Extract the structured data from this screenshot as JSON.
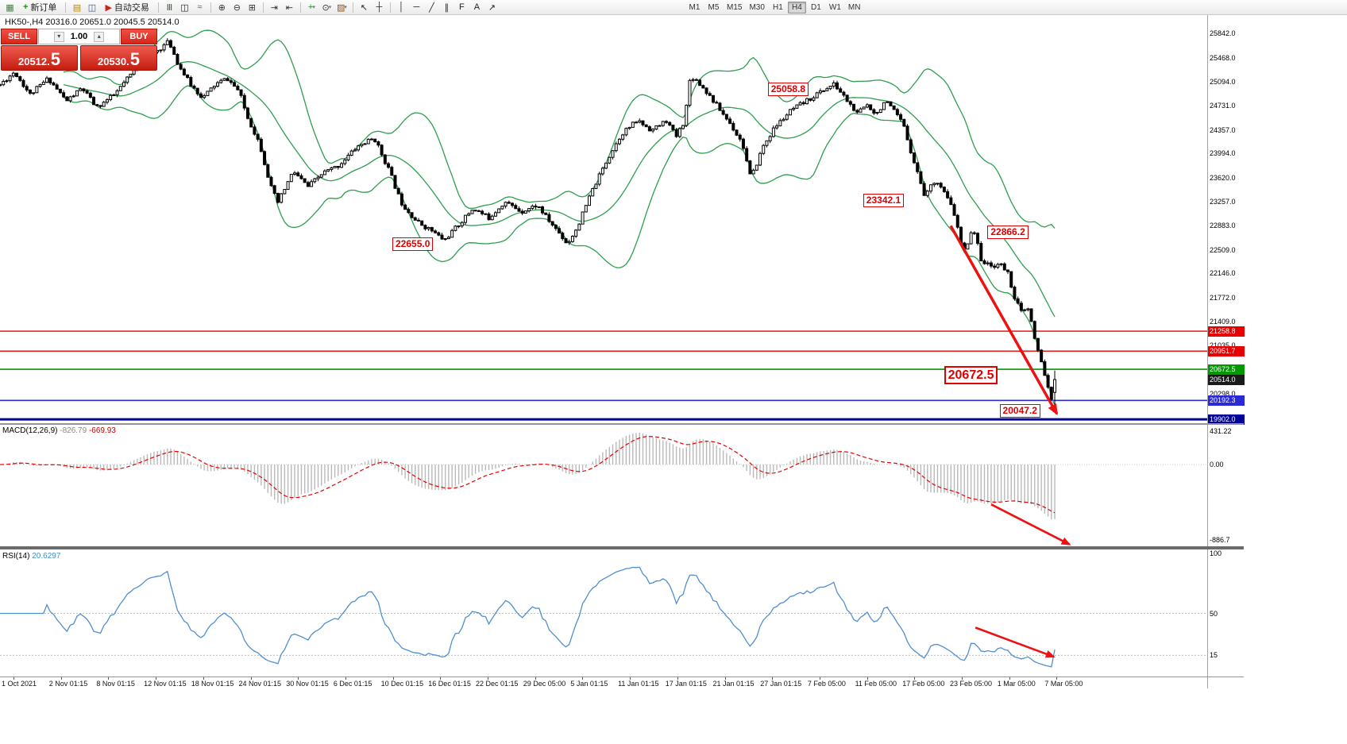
{
  "toolbar": {
    "items": [
      {
        "type": "icon",
        "name": "new-chart-icon",
        "glyph": "▦",
        "color": "#4a7c4a"
      },
      {
        "type": "button",
        "name": "new-order-button",
        "glyph": "+",
        "glyph_color": "#1a8c1a",
        "label": "新订单"
      },
      {
        "type": "sep"
      },
      {
        "type": "icon",
        "name": "profiles-icon",
        "glyph": "▤",
        "color": "#b8860b"
      },
      {
        "type": "icon",
        "name": "charts-window-icon",
        "glyph": "◫",
        "color": "#445577"
      },
      {
        "type": "button",
        "name": "autotrading-button",
        "glyph": "▶",
        "glyph_color": "#cc2222",
        "label": "自动交易"
      },
      {
        "type": "sep"
      },
      {
        "type": "icon",
        "name": "bar-chart-icon",
        "glyph": "Ⅲ",
        "color": "#336633"
      },
      {
        "type": "icon",
        "name": "candlestick-chart-icon",
        "glyph": "◫",
        "color": "#222222"
      },
      {
        "type": "icon",
        "name": "line-chart-icon",
        "glyph": "≈",
        "color": "#336699"
      },
      {
        "type": "sep"
      },
      {
        "type": "icon",
        "name": "zoom-in-icon",
        "glyph": "⊕",
        "color": "#333333"
      },
      {
        "type": "icon",
        "name": "zoom-out-icon",
        "glyph": "⊖",
        "color": "#333333"
      },
      {
        "type": "icon",
        "name": "tile-windows-icon",
        "glyph": "⊞",
        "color": "#333333"
      },
      {
        "type": "sep"
      },
      {
        "type": "icon",
        "name": "auto-scroll-icon",
        "glyph": "⇥",
        "color": "#333333"
      },
      {
        "type": "icon",
        "name": "chart-shift-icon",
        "glyph": "⇤",
        "color": "#333333"
      },
      {
        "type": "sep"
      },
      {
        "type": "icon-dd",
        "name": "indicators-icon",
        "glyph": "+",
        "color": "#1a8c1a"
      },
      {
        "type": "icon-dd",
        "name": "periods-icon",
        "glyph": "⊙",
        "color": "#333333"
      },
      {
        "type": "icon-dd",
        "name": "templates-icon",
        "glyph": "▨",
        "color": "#885522"
      },
      {
        "type": "sep"
      },
      {
        "type": "icon",
        "name": "cursor-icon",
        "glyph": "↖",
        "color": "#222222"
      },
      {
        "type": "icon",
        "name": "crosshair-icon",
        "glyph": "┼",
        "color": "#222222"
      },
      {
        "type": "sep"
      },
      {
        "type": "icon",
        "name": "vertical-line-icon",
        "glyph": "│",
        "color": "#222222"
      },
      {
        "type": "icon",
        "name": "horizontal-line-icon",
        "glyph": "─",
        "color": "#222222"
      },
      {
        "type": "icon",
        "name": "trendline-icon",
        "glyph": "╱",
        "color": "#222222"
      },
      {
        "type": "icon",
        "name": "channel-icon",
        "glyph": "∥",
        "color": "#222222"
      },
      {
        "type": "icon",
        "name": "fibonacci-icon",
        "glyph": "F",
        "color": "#222222"
      },
      {
        "type": "icon",
        "name": "text-label-icon",
        "glyph": "A",
        "color": "#222222"
      },
      {
        "type": "icon",
        "name": "arrows-tool-icon",
        "glyph": "↗",
        "color": "#222222"
      }
    ],
    "timeframes": [
      "M1",
      "M5",
      "M15",
      "M30",
      "H1",
      "H4",
      "D1",
      "W1",
      "MN"
    ],
    "active_timeframe": "H4"
  },
  "chart_header": {
    "title": "HK50-,H4",
    "ohlc": "20316.0 20651.0 20045.5 20514.0"
  },
  "trade_panel": {
    "sell_label": "SELL",
    "buy_label": "BUY",
    "volume": "1.00",
    "spinner_down": "▾",
    "spinner_up": "▴",
    "sell_price_main": "20512.",
    "sell_price_big": "5",
    "buy_price_main": "20530.",
    "buy_price_big": "5"
  },
  "chart_data": {
    "type": "candlestick",
    "symbol": "HK50-",
    "period": "H4",
    "ohlc_current": {
      "open": 20316.0,
      "high": 20651.0,
      "low": 20045.5,
      "close": 20514.0
    },
    "bid": 20512.5,
    "ask": 20530.5,
    "arrow_color": "#ee1111",
    "viewport": {
      "price_max": 26123,
      "price_min": 19842,
      "data_end_frac": 0.8737,
      "candle_count": 316,
      "seed": 11
    },
    "y_axis_labels": [
      "25842.0",
      "25468.0",
      "25094.0",
      "24731.0",
      "24357.0",
      "23994.0",
      "23620.0",
      "23257.0",
      "22883.0",
      "22509.0",
      "22146.0",
      "21772.0",
      "21409.0",
      "21035.0",
      "20298.0"
    ],
    "x_axis_labels": [
      "1 Oct 2021",
      "2 Nov 01:15",
      "8 Nov 01:15",
      "12 Nov 01:15",
      "18 Nov 01:15",
      "24 Nov 01:15",
      "30 Nov 01:15",
      "6 Dec 01:15",
      "10 Dec 01:15",
      "16 Dec 01:15",
      "22 Dec 01:15",
      "29 Dec 05:00",
      "5 Jan 01:15",
      "11 Jan 01:15",
      "17 Jan 01:15",
      "21 Jan 01:15",
      "27 Jan 01:15",
      "7 Feb 05:00",
      "11 Feb 05:00",
      "17 Feb 05:00",
      "23 Feb 05:00",
      "1 Mar 05:00",
      "7 Mar 05:00"
    ],
    "hlines": [
      {
        "price": 21258.8,
        "label": "21258.8",
        "color": "#e60000",
        "width": 1.3
      },
      {
        "price": 20951.7,
        "label": "20951.7",
        "color": "#e60000",
        "width": 1.3
      },
      {
        "price": 20672.5,
        "label": "20672.5",
        "color": "#009900",
        "width": 1.6
      },
      {
        "price": 20192.3,
        "label": "20192.3",
        "color": "#2b2bd6",
        "width": 1.6
      },
      {
        "price": 19902.0,
        "label": "19902.0",
        "color": "#000099",
        "width": 3
      }
    ],
    "current_price_box": {
      "label": "20514.0",
      "price": 20514.0,
      "color": "#1a1a1a"
    },
    "callouts": [
      {
        "text": "25058.8",
        "xf": 0.636,
        "yf": 0.165,
        "size": "normal"
      },
      {
        "text": "23342.1",
        "xf": 0.715,
        "yf": 0.437,
        "size": "normal"
      },
      {
        "text": "22866.2",
        "xf": 0.818,
        "yf": 0.515,
        "size": "normal"
      },
      {
        "text": "22655.0",
        "xf": 0.325,
        "yf": 0.545,
        "size": "normal"
      },
      {
        "text": "20672.5",
        "xf": 0.782,
        "yf": 0.86,
        "size": "large"
      },
      {
        "text": "20047.2",
        "xf": 0.828,
        "yf": 0.953,
        "size": "normal"
      }
    ],
    "swings": [
      [
        0.0,
        25050
      ],
      [
        0.012,
        25250
      ],
      [
        0.025,
        24900
      ],
      [
        0.04,
        25150
      ],
      [
        0.055,
        24800
      ],
      [
        0.068,
        25000
      ],
      [
        0.08,
        24700
      ],
      [
        0.095,
        24900
      ],
      [
        0.108,
        25200
      ],
      [
        0.12,
        25450
      ],
      [
        0.132,
        25600
      ],
      [
        0.14,
        25720
      ],
      [
        0.148,
        25350
      ],
      [
        0.158,
        25050
      ],
      [
        0.168,
        24850
      ],
      [
        0.178,
        25050
      ],
      [
        0.188,
        25150
      ],
      [
        0.198,
        24950
      ],
      [
        0.205,
        24550
      ],
      [
        0.215,
        24150
      ],
      [
        0.224,
        23500
      ],
      [
        0.23,
        23230
      ],
      [
        0.243,
        23720
      ],
      [
        0.255,
        23480
      ],
      [
        0.268,
        23700
      ],
      [
        0.28,
        23800
      ],
      [
        0.296,
        24100
      ],
      [
        0.31,
        24230
      ],
      [
        0.322,
        23750
      ],
      [
        0.332,
        23250
      ],
      [
        0.345,
        22950
      ],
      [
        0.358,
        22800
      ],
      [
        0.368,
        22655
      ],
      [
        0.38,
        22900
      ],
      [
        0.392,
        23150
      ],
      [
        0.405,
        23000
      ],
      [
        0.418,
        23250
      ],
      [
        0.432,
        23100
      ],
      [
        0.445,
        23200
      ],
      [
        0.455,
        22950
      ],
      [
        0.462,
        22800
      ],
      [
        0.47,
        22600
      ],
      [
        0.478,
        22850
      ],
      [
        0.49,
        23400
      ],
      [
        0.503,
        23900
      ],
      [
        0.515,
        24300
      ],
      [
        0.528,
        24500
      ],
      [
        0.54,
        24350
      ],
      [
        0.552,
        24500
      ],
      [
        0.56,
        24250
      ],
      [
        0.567,
        24500
      ],
      [
        0.572,
        25200
      ],
      [
        0.578,
        25100
      ],
      [
        0.585,
        24950
      ],
      [
        0.595,
        24700
      ],
      [
        0.605,
        24450
      ],
      [
        0.615,
        24150
      ],
      [
        0.622,
        23600
      ],
      [
        0.632,
        24100
      ],
      [
        0.642,
        24400
      ],
      [
        0.655,
        24650
      ],
      [
        0.668,
        24800
      ],
      [
        0.68,
        24950
      ],
      [
        0.691,
        25058
      ],
      [
        0.7,
        24850
      ],
      [
        0.71,
        24600
      ],
      [
        0.718,
        24750
      ],
      [
        0.726,
        24600
      ],
      [
        0.733,
        24800
      ],
      [
        0.74,
        24650
      ],
      [
        0.748,
        24450
      ],
      [
        0.755,
        24000
      ],
      [
        0.766,
        23342
      ],
      [
        0.775,
        23600
      ],
      [
        0.782,
        23400
      ],
      [
        0.79,
        23100
      ],
      [
        0.798,
        22450
      ],
      [
        0.806,
        22866
      ],
      [
        0.813,
        22350
      ],
      [
        0.82,
        22250
      ],
      [
        0.828,
        22300
      ],
      [
        0.835,
        22150
      ],
      [
        0.84,
        21800
      ],
      [
        0.846,
        21550
      ],
      [
        0.852,
        21600
      ],
      [
        0.858,
        21050
      ],
      [
        0.864,
        20700
      ],
      [
        0.869,
        20350
      ],
      [
        0.8725,
        20047
      ],
      [
        0.8737,
        20514
      ]
    ],
    "bollinger": {
      "period": 20,
      "deviation": 2,
      "color": "#2e9e4f"
    },
    "indicators": {
      "macd": {
        "name": "MACD(12,26,9)",
        "value_main": "-826.79",
        "value_signal": "-669.93",
        "axis_top": "431.22",
        "axis_zero": "0.00",
        "axis_bottom": "-886.7",
        "histogram_color": "#b9b9b9",
        "signal_color": "#e60000"
      },
      "rsi": {
        "name": "RSI(14)",
        "value": "20.6297",
        "axis": [
          "100",
          "50",
          "15"
        ],
        "levels": [
          50,
          15
        ],
        "line_color": "#4f8fd0"
      }
    },
    "trend_arrows": {
      "main": {
        "x1f": 0.7875,
        "price1": 22880,
        "x2f": 0.8755,
        "price2": 19985
      },
      "macd": {
        "x1f": 0.821,
        "y1f": 0.655,
        "x2f": 0.886,
        "y2f": 0.985
      },
      "rsi": {
        "x1f": 0.808,
        "y1f": 0.615,
        "x2f": 0.873,
        "y2f": 0.845
      }
    }
  }
}
